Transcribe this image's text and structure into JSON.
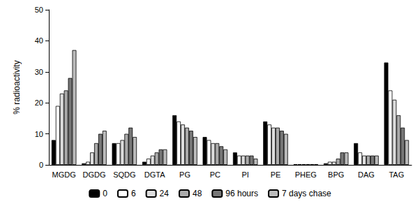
{
  "chart_data": {
    "type": "bar",
    "y_label": "% radioactivity",
    "categories": [
      "MGDG",
      "DGDG",
      "SQDG",
      "DGTA",
      "PG",
      "PC",
      "PI",
      "PE",
      "PHEG",
      "BPG",
      "DAG",
      "TAG"
    ],
    "series": [
      {
        "name": "0",
        "color": "#000000",
        "values": [
          8,
          0.5,
          7,
          1,
          16,
          9,
          4,
          14,
          0.2,
          0.5,
          7,
          33
        ]
      },
      {
        "name": "6",
        "color": "#ffffff",
        "values": [
          19,
          1,
          7,
          2,
          14,
          8,
          3,
          13,
          0.2,
          1,
          4,
          24
        ]
      },
      {
        "name": "24",
        "color": "#dddddd",
        "values": [
          23,
          4,
          8,
          3,
          13,
          7,
          3,
          12,
          0.2,
          1,
          3,
          21
        ]
      },
      {
        "name": "48",
        "color": "#aaaaaa",
        "values": [
          24,
          7,
          10,
          4,
          12,
          7,
          3,
          12,
          0.2,
          2,
          3,
          16
        ]
      },
      {
        "name": "96 hours",
        "color": "#777777",
        "values": [
          28,
          10,
          12,
          5,
          11,
          6,
          3,
          11,
          0.2,
          4,
          3,
          12
        ]
      },
      {
        "name": "7 days chase",
        "color": "#bbbbbb",
        "values": [
          37,
          11,
          9,
          5,
          9,
          5,
          2,
          10,
          0.2,
          4,
          3,
          8
        ]
      }
    ],
    "ylim": [
      0,
      50
    ],
    "yticks": [
      0,
      10,
      20,
      30,
      40,
      50
    ],
    "grid": false,
    "legend": "bottom"
  }
}
